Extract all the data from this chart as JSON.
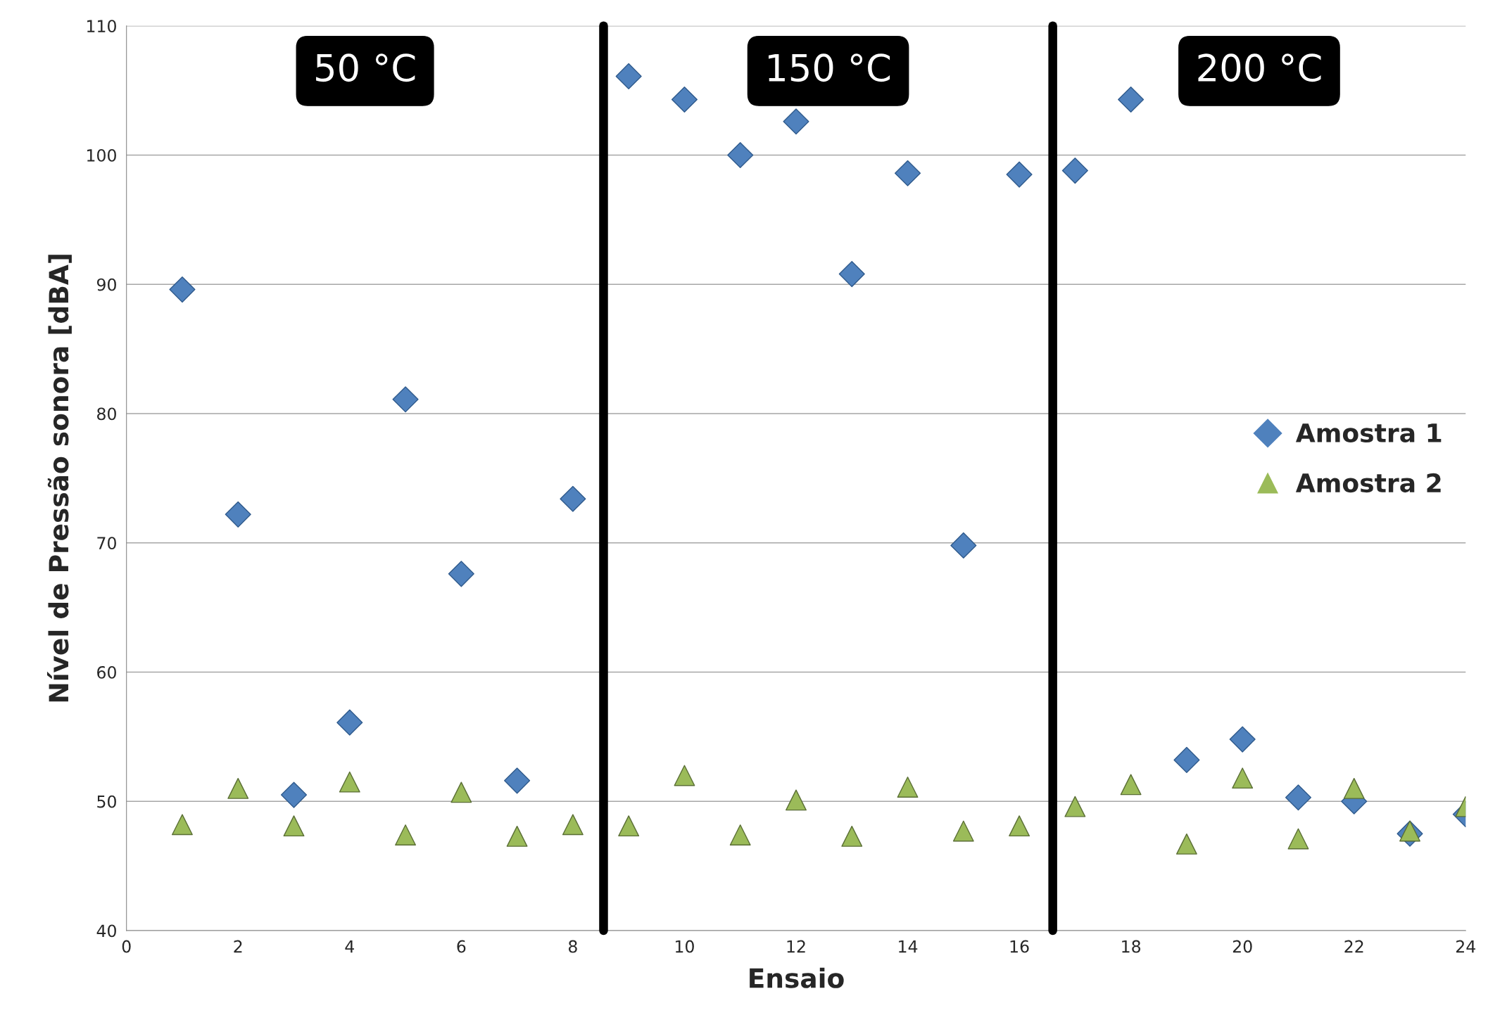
{
  "chart_data": {
    "type": "scatter",
    "xlabel": "Ensaio",
    "ylabel": "Nível de Pressão sonora [dBA]",
    "xlim": [
      0,
      24
    ],
    "xticks": [
      0,
      2,
      4,
      6,
      8,
      10,
      12,
      14,
      16,
      18,
      20,
      22,
      24
    ],
    "ylim": [
      40,
      110
    ],
    "yticks": [
      40,
      50,
      60,
      70,
      80,
      90,
      100,
      110
    ],
    "grid": "y",
    "legend": "right",
    "x": [
      1,
      2,
      3,
      4,
      5,
      6,
      7,
      8,
      9,
      10,
      11,
      12,
      13,
      14,
      15,
      16,
      17,
      18,
      19,
      20,
      21,
      22,
      23,
      24
    ],
    "series": [
      {
        "name": "Amostra 1",
        "color": "#4f81bd",
        "marker": "diamond",
        "values": [
          89.6,
          72.2,
          50.5,
          56.1,
          81.1,
          67.6,
          51.6,
          73.4,
          106.1,
          104.3,
          100.0,
          102.6,
          90.8,
          98.6,
          69.8,
          98.5,
          98.8,
          104.3,
          53.2,
          54.8,
          50.3,
          50.0,
          47.5,
          49.0
        ]
      },
      {
        "name": "Amostra 2",
        "color": "#9bbb59",
        "marker": "triangle",
        "values": [
          48.2,
          51.0,
          48.1,
          51.5,
          47.4,
          50.7,
          47.3,
          48.2,
          48.1,
          52.0,
          47.4,
          50.1,
          47.3,
          51.1,
          47.7,
          48.1,
          49.6,
          51.3,
          46.7,
          51.8,
          47.1,
          51.0,
          47.7,
          49.6
        ]
      }
    ],
    "ref_lines": [
      {
        "axis": "x",
        "value": 8.55,
        "color": "#000000"
      },
      {
        "axis": "x",
        "value": 16.6,
        "color": "#000000"
      }
    ],
    "annotations": [
      "50 °C",
      "150 °C",
      "200 °C"
    ]
  }
}
